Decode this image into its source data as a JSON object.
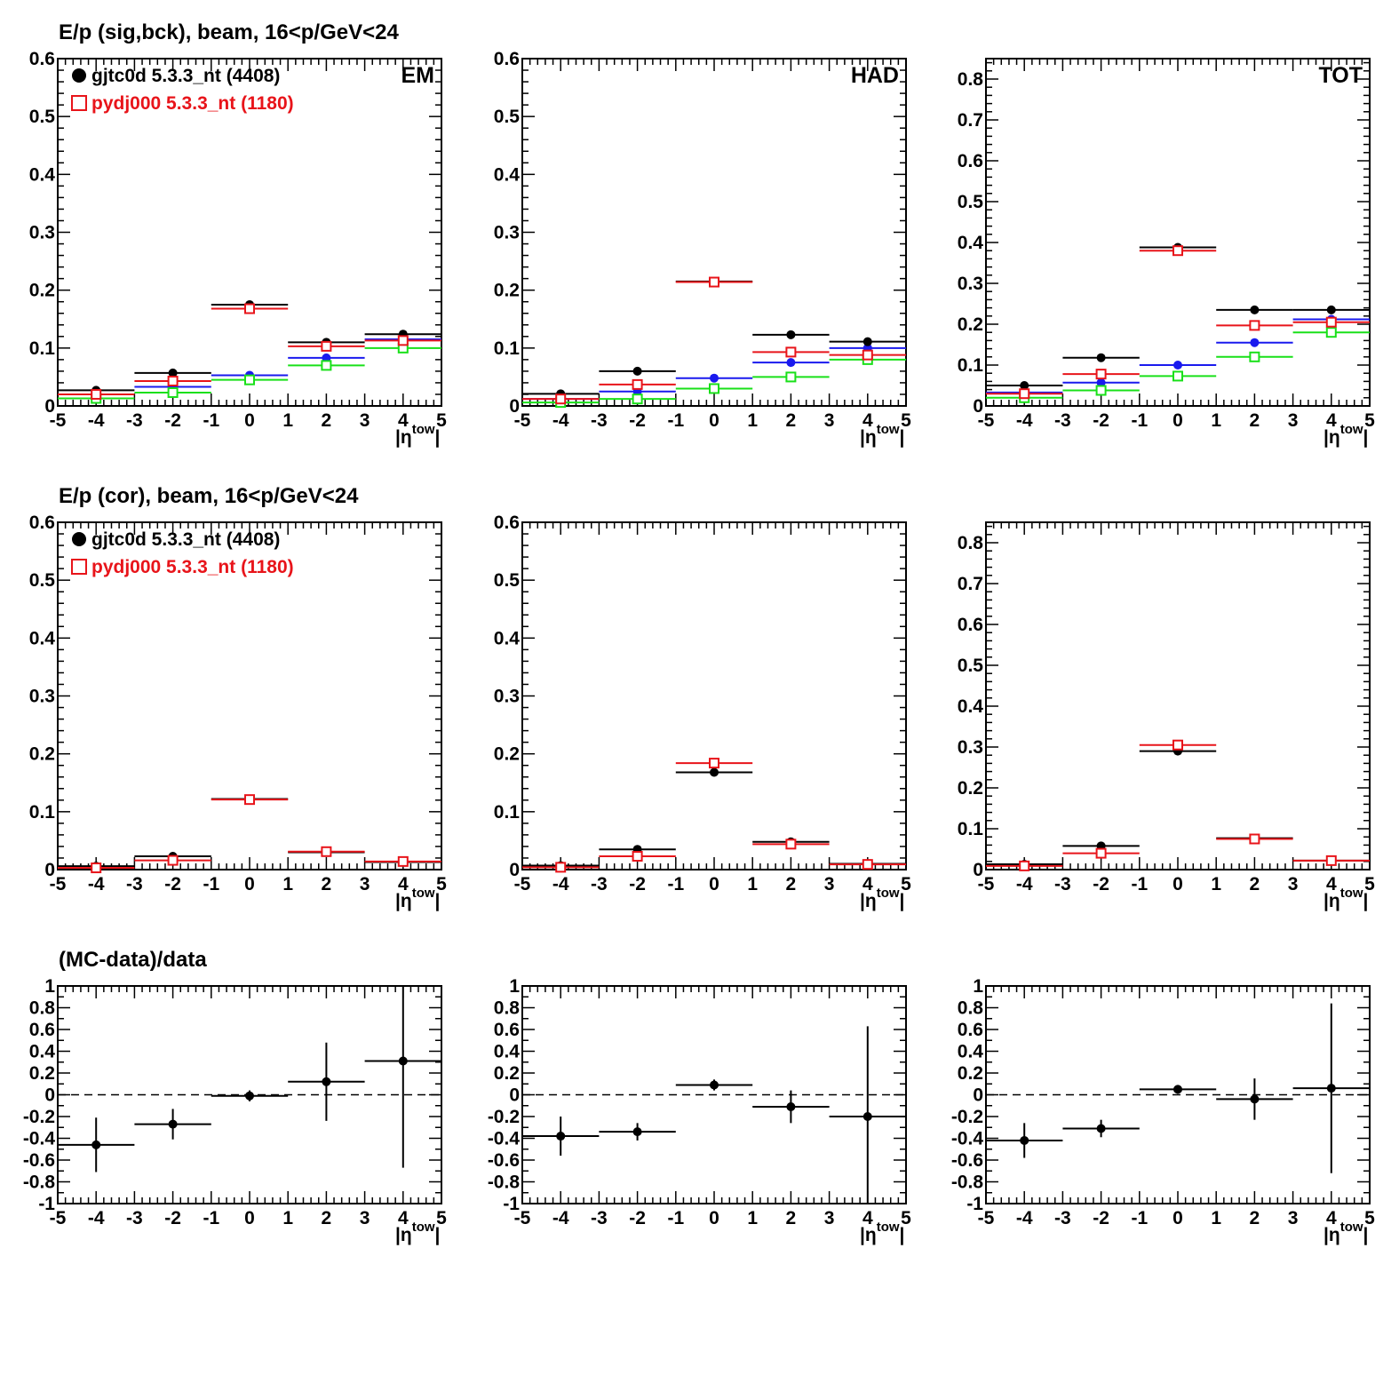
{
  "colors": {
    "black": "#000000",
    "red": "#e8141a",
    "blue": "#1a1aee",
    "green": "#19e019"
  },
  "x_tick_labels": [
    "-5",
    "-4",
    "-3",
    "-2",
    "-1",
    "0",
    "1",
    "2",
    "3",
    "4",
    "5"
  ],
  "x_axis_label": {
    "main": "|η",
    "sup": "tow",
    "close": "|"
  },
  "rows": [
    {
      "title": "E/p (sig,bck), beam, 16<p/GeV<24",
      "legend": [
        {
          "label": "gjtc0d 5.3.3_nt (4408)",
          "color": "#000000",
          "marker": "filled-circle"
        },
        {
          "label": "pydj000 5.3.3_nt (1180)",
          "color": "#e8141a",
          "marker": "open-square"
        }
      ],
      "panels": [
        {
          "label": "EM",
          "chart_data": {
            "type": "scatter",
            "x": [
              -4,
              -2,
              0,
              2,
              4
            ],
            "x_bin_edges": [
              -5,
              -3,
              -1,
              1,
              3,
              5
            ],
            "xlim": [
              -5,
              5
            ],
            "ylim": [
              0,
              0.6
            ],
            "y_tick_labels": [
              "0",
              "0.1",
              "0.2",
              "0.3",
              "0.4",
              "0.5",
              "0.6"
            ],
            "series": [
              {
                "color": "#1a1aee",
                "marker": "filled-circle",
                "values": [
                  0.02,
                  0.033,
                  0.053,
                  0.083,
                  0.115
                ]
              },
              {
                "color": "#19e019",
                "marker": "open-square",
                "values": [
                  0.013,
                  0.023,
                  0.045,
                  0.07,
                  0.1
                ]
              },
              {
                "color": "#000000",
                "marker": "filled-circle",
                "values": [
                  0.027,
                  0.057,
                  0.175,
                  0.11,
                  0.124
                ]
              },
              {
                "color": "#e8141a",
                "marker": "open-square",
                "values": [
                  0.02,
                  0.043,
                  0.168,
                  0.103,
                  0.113
                ]
              }
            ]
          }
        },
        {
          "label": "HAD",
          "chart_data": {
            "type": "scatter",
            "x": [
              -4,
              -2,
              0,
              2,
              4
            ],
            "x_bin_edges": [
              -5,
              -3,
              -1,
              1,
              3,
              5
            ],
            "xlim": [
              -5,
              5
            ],
            "ylim": [
              0,
              0.6
            ],
            "y_tick_labels": [
              "0",
              "0.1",
              "0.2",
              "0.3",
              "0.4",
              "0.5",
              "0.6"
            ],
            "series": [
              {
                "color": "#1a1aee",
                "marker": "filled-circle",
                "values": [
                  0.012,
                  0.025,
                  0.048,
                  0.075,
                  0.1
                ]
              },
              {
                "color": "#19e019",
                "marker": "open-square",
                "values": [
                  0.006,
                  0.012,
                  0.03,
                  0.05,
                  0.08
                ]
              },
              {
                "color": "#000000",
                "marker": "filled-circle",
                "values": [
                  0.021,
                  0.06,
                  0.215,
                  0.123,
                  0.111
                ]
              },
              {
                "color": "#e8141a",
                "marker": "open-square",
                "values": [
                  0.012,
                  0.037,
                  0.214,
                  0.093,
                  0.088
                ]
              }
            ]
          }
        },
        {
          "label": "TOT",
          "chart_data": {
            "type": "scatter",
            "x": [
              -4,
              -2,
              0,
              2,
              4
            ],
            "x_bin_edges": [
              -5,
              -3,
              -1,
              1,
              3,
              5
            ],
            "xlim": [
              -5,
              5
            ],
            "ylim": [
              0,
              0.85
            ],
            "y_tick_labels": [
              "0",
              "0.1",
              "0.2",
              "0.3",
              "0.4",
              "0.5",
              "0.6",
              "0.7",
              "0.8"
            ],
            "series": [
              {
                "color": "#1a1aee",
                "marker": "filled-circle",
                "values": [
                  0.033,
                  0.057,
                  0.1,
                  0.155,
                  0.212
                ]
              },
              {
                "color": "#19e019",
                "marker": "open-square",
                "values": [
                  0.02,
                  0.038,
                  0.073,
                  0.12,
                  0.18
                ]
              },
              {
                "color": "#000000",
                "marker": "filled-circle",
                "values": [
                  0.05,
                  0.118,
                  0.388,
                  0.235,
                  0.235
                ]
              },
              {
                "color": "#e8141a",
                "marker": "open-square",
                "values": [
                  0.03,
                  0.078,
                  0.38,
                  0.197,
                  0.205
                ]
              }
            ]
          }
        }
      ]
    },
    {
      "title": "E/p (cor), beam, 16<p/GeV<24",
      "legend": [
        {
          "label": "gjtc0d 5.3.3_nt (4408)",
          "color": "#000000",
          "marker": "filled-circle"
        },
        {
          "label": "pydj000 5.3.3_nt (1180)",
          "color": "#e8141a",
          "marker": "open-square"
        }
      ],
      "panels": [
        {
          "label": "",
          "chart_data": {
            "type": "scatter",
            "x": [
              -4,
              -2,
              0,
              2,
              4
            ],
            "x_bin_edges": [
              -5,
              -3,
              -1,
              1,
              3,
              5
            ],
            "xlim": [
              -5,
              5
            ],
            "ylim": [
              0,
              0.6
            ],
            "y_tick_labels": [
              "0",
              "0.1",
              "0.2",
              "0.3",
              "0.4",
              "0.5",
              "0.6"
            ],
            "series": [
              {
                "color": "#000000",
                "marker": "filled-circle",
                "values": [
                  0.006,
                  0.023,
                  0.122,
                  0.03,
                  0.013
                ]
              },
              {
                "color": "#e8141a",
                "marker": "open-square",
                "values": [
                  0.003,
                  0.016,
                  0.121,
                  0.031,
                  0.014
                ]
              }
            ]
          }
        },
        {
          "label": "",
          "chart_data": {
            "type": "scatter",
            "x": [
              -4,
              -2,
              0,
              2,
              4
            ],
            "x_bin_edges": [
              -5,
              -3,
              -1,
              1,
              3,
              5
            ],
            "xlim": [
              -5,
              5
            ],
            "ylim": [
              0,
              0.6
            ],
            "y_tick_labels": [
              "0",
              "0.1",
              "0.2",
              "0.3",
              "0.4",
              "0.5",
              "0.6"
            ],
            "series": [
              {
                "color": "#000000",
                "marker": "filled-circle",
                "values": [
                  0.007,
                  0.035,
                  0.168,
                  0.048,
                  0.01
                ]
              },
              {
                "color": "#e8141a",
                "marker": "open-square",
                "values": [
                  0.004,
                  0.023,
                  0.184,
                  0.044,
                  0.009
                ]
              }
            ]
          }
        },
        {
          "label": "",
          "chart_data": {
            "type": "scatter",
            "x": [
              -4,
              -2,
              0,
              2,
              4
            ],
            "x_bin_edges": [
              -5,
              -3,
              -1,
              1,
              3,
              5
            ],
            "xlim": [
              -5,
              5
            ],
            "ylim": [
              0,
              0.85
            ],
            "y_tick_labels": [
              "0",
              "0.1",
              "0.2",
              "0.3",
              "0.4",
              "0.5",
              "0.6",
              "0.7",
              "0.8"
            ],
            "series": [
              {
                "color": "#000000",
                "marker": "filled-circle",
                "values": [
                  0.013,
                  0.058,
                  0.29,
                  0.077,
                  0.022
                ]
              },
              {
                "color": "#e8141a",
                "marker": "open-square",
                "values": [
                  0.009,
                  0.04,
                  0.305,
                  0.075,
                  0.022
                ]
              }
            ]
          }
        }
      ]
    },
    {
      "title": "(MC-data)/data",
      "legend": [],
      "panels": [
        {
          "label": "",
          "chart_data": {
            "type": "scatter",
            "x": [
              -4,
              -2,
              0,
              2,
              4
            ],
            "x_bin_edges": [
              -5,
              -3,
              -1,
              1,
              3,
              5
            ],
            "xlim": [
              -5,
              5
            ],
            "ylim": [
              -1,
              1
            ],
            "y_tick_labels": [
              "-1",
              "-0.8",
              "-0.6",
              "-0.4",
              "-0.2",
              "0",
              "0.2",
              "0.4",
              "0.6",
              "0.8",
              "1"
            ],
            "reference_line": 0,
            "series": [
              {
                "color": "#000000",
                "marker": "filled-circle",
                "values": [
                  -0.46,
                  -0.27,
                  -0.01,
                  0.12,
                  0.31
                ],
                "errors": [
                  0.25,
                  0.14,
                  0.05,
                  0.36,
                  0.98
                ]
              }
            ]
          }
        },
        {
          "label": "",
          "chart_data": {
            "type": "scatter",
            "x": [
              -4,
              -2,
              0,
              2,
              4
            ],
            "x_bin_edges": [
              -5,
              -3,
              -1,
              1,
              3,
              5
            ],
            "xlim": [
              -5,
              5
            ],
            "ylim": [
              -1,
              1
            ],
            "y_tick_labels": [
              "-1",
              "-0.8",
              "-0.6",
              "-0.4",
              "-0.2",
              "0",
              "0.2",
              "0.4",
              "0.6",
              "0.8",
              "1"
            ],
            "reference_line": 0,
            "series": [
              {
                "color": "#000000",
                "marker": "filled-circle",
                "values": [
                  -0.38,
                  -0.34,
                  0.09,
                  -0.11,
                  -0.2
                ],
                "errors": [
                  0.18,
                  0.08,
                  0.05,
                  0.15,
                  0.83
                ]
              }
            ]
          }
        },
        {
          "label": "",
          "chart_data": {
            "type": "scatter",
            "x": [
              -4,
              -2,
              0,
              2,
              4
            ],
            "x_bin_edges": [
              -5,
              -3,
              -1,
              1,
              3,
              5
            ],
            "xlim": [
              -5,
              5
            ],
            "ylim": [
              -1,
              1
            ],
            "y_tick_labels": [
              "-1",
              "-0.8",
              "-0.6",
              "-0.4",
              "-0.2",
              "0",
              "0.2",
              "0.4",
              "0.6",
              "0.8",
              "1"
            ],
            "reference_line": 0,
            "series": [
              {
                "color": "#000000",
                "marker": "filled-circle",
                "values": [
                  -0.42,
                  -0.31,
                  0.05,
                  -0.04,
                  0.06
                ],
                "errors": [
                  0.16,
                  0.08,
                  0.04,
                  0.19,
                  0.78
                ]
              }
            ]
          }
        }
      ]
    }
  ]
}
